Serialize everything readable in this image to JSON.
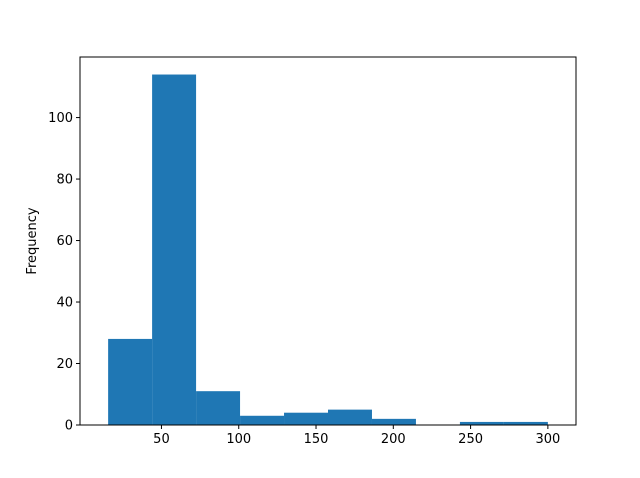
{
  "chart_data": {
    "type": "bar",
    "histogram": true,
    "bin_edges": [
      15.5,
      43.95,
      72.4,
      100.85,
      129.3,
      157.75,
      186.2,
      214.65,
      243.1,
      271.55,
      300
    ],
    "values": [
      28,
      114,
      11,
      3,
      4,
      5,
      2,
      0,
      1,
      1
    ],
    "title": "",
    "xlabel": "",
    "ylabel": "Frequency",
    "xlim": [
      -2.7,
      318.2
    ],
    "ylim": [
      0,
      119.7
    ],
    "xticks": [
      50,
      100,
      150,
      200,
      250,
      300
    ],
    "yticks": [
      0,
      20,
      40,
      60,
      80,
      100
    ],
    "color": "#1f77b4",
    "grid": false
  }
}
